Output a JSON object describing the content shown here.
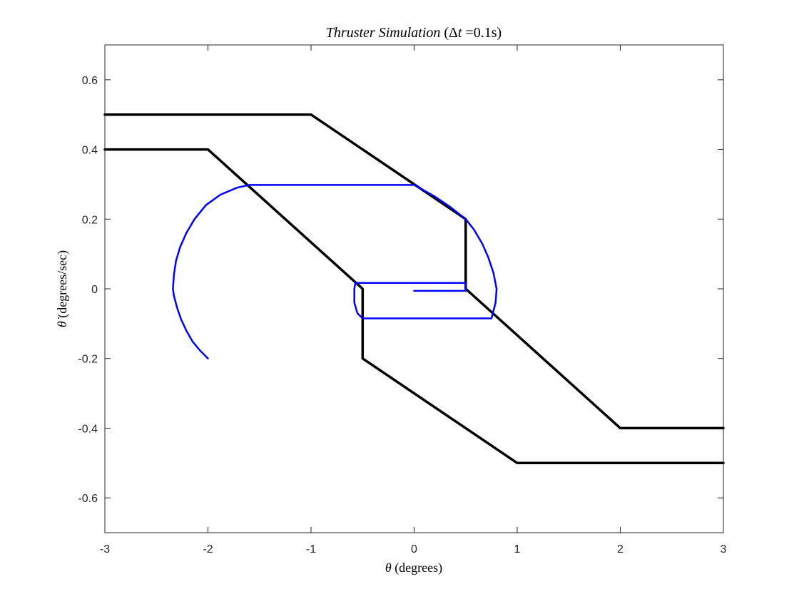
{
  "chart_data": {
    "type": "line",
    "title_main": "Thruster Simulation",
    "title_paren_open": " (Δ",
    "title_t": "t",
    "title_paren_close": " =0.1s)",
    "xlabel_symbol": "θ",
    "xlabel_unit": " (degrees)",
    "ylabel_symbol": "θ̇",
    "ylabel_unit": " (degrees/sec)",
    "xlim": [
      -3,
      3
    ],
    "ylim": [
      -0.7,
      0.7
    ],
    "x_ticks": [
      -3,
      -2,
      -1,
      0,
      1,
      2,
      3
    ],
    "y_ticks": [
      -0.6,
      -0.4,
      -0.2,
      0,
      0.2,
      0.4,
      0.6
    ],
    "x_tick_labels": [
      "-3",
      "-2",
      "-1",
      "0",
      "1",
      "2",
      "3"
    ],
    "y_tick_labels": [
      "-0.6",
      "-0.4",
      "-0.2",
      "0",
      "0.2",
      "0.4",
      "0.6"
    ],
    "grid": false,
    "series": [
      {
        "color": "#000000",
        "points": [
          [
            -3,
            0.5
          ],
          [
            -1,
            0.5
          ],
          [
            0.5,
            0.2
          ],
          [
            0.5,
            0
          ],
          [
            2,
            -0.4
          ],
          [
            3,
            -0.4
          ]
        ]
      },
      {
        "color": "#000000",
        "points": [
          [
            -3,
            0.4
          ],
          [
            -2,
            0.4
          ],
          [
            -0.5,
            0
          ],
          [
            -0.5,
            -0.2
          ],
          [
            1,
            -0.5
          ],
          [
            3,
            -0.5
          ]
        ]
      },
      {
        "color": "#0000ff",
        "points": [
          [
            -2.0,
            -0.2
          ],
          [
            -2.08,
            -0.176
          ],
          [
            -2.15,
            -0.151
          ],
          [
            -2.21,
            -0.12
          ],
          [
            -2.26,
            -0.088
          ],
          [
            -2.3,
            -0.054
          ],
          [
            -2.33,
            -0.02
          ],
          [
            -2.34,
            0
          ],
          [
            -2.33,
            0.04
          ],
          [
            -2.31,
            0.08
          ],
          [
            -2.27,
            0.12
          ],
          [
            -2.21,
            0.16
          ],
          [
            -2.13,
            0.2
          ],
          [
            -2.02,
            0.24
          ],
          [
            -1.88,
            0.27
          ],
          [
            -1.72,
            0.29
          ],
          [
            -1.6,
            0.298
          ],
          [
            -1.0,
            0.298
          ],
          [
            -0.5,
            0.298
          ],
          [
            0.0,
            0.298
          ],
          [
            0.05,
            0.29
          ],
          [
            0.2,
            0.265
          ],
          [
            0.35,
            0.235
          ],
          [
            0.5,
            0.2
          ],
          [
            0.58,
            0.17
          ],
          [
            0.66,
            0.13
          ],
          [
            0.72,
            0.09
          ],
          [
            0.77,
            0.045
          ],
          [
            0.8,
            0.0
          ],
          [
            0.79,
            -0.04
          ],
          [
            0.75,
            -0.085
          ],
          [
            0.4,
            -0.085
          ],
          [
            0.0,
            -0.085
          ],
          [
            -0.5,
            -0.085
          ],
          [
            -0.55,
            -0.07
          ],
          [
            -0.58,
            -0.04
          ],
          [
            -0.58,
            0.0
          ],
          [
            -0.57,
            0.017
          ],
          [
            0.0,
            0.017
          ],
          [
            0.5,
            0.017
          ],
          [
            0.5,
            0.0
          ],
          [
            0.5,
            -0.006
          ],
          [
            0.0,
            -0.006
          ]
        ]
      }
    ]
  }
}
